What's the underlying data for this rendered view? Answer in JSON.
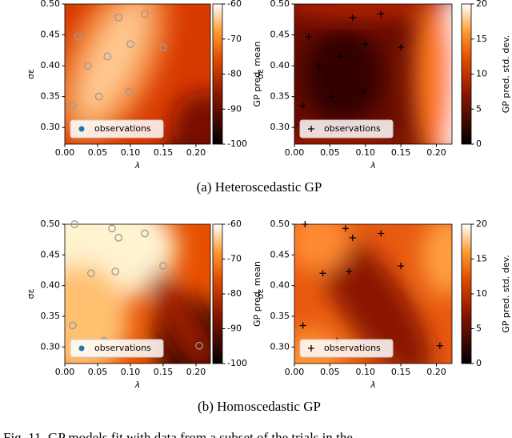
{
  "chart_data": [
    {
      "type": "scatter",
      "xlabel": "λ",
      "ylabel": "σε",
      "colorbar_label": "GP pred. mean",
      "clim": [
        -100,
        -60
      ],
      "cticks": [
        -100,
        -90,
        -80,
        -70,
        -60
      ],
      "marker": "circle",
      "legend": "lower left",
      "series": [
        {
          "name": "observations",
          "color": "#1f77b4",
          "x": [
            0.012,
            0.02,
            0.035,
            0.052,
            0.065,
            0.082,
            0.1,
            0.098,
            0.122,
            0.15
          ],
          "values": [
            0.335,
            0.447,
            0.4,
            0.35,
            0.415,
            0.478,
            0.435,
            0.358,
            0.484,
            0.43
          ]
        }
      ],
      "xlim": [
        0,
        0.222
      ],
      "ylim": [
        0.273,
        0.5
      ],
      "xticks": [
        {
          "value": 0,
          "label": "0.00"
        },
        {
          "value": 0.05,
          "label": "0.05"
        },
        {
          "value": 0.1,
          "label": "0.10"
        },
        {
          "value": 0.15,
          "label": "0.15"
        },
        {
          "value": 0.2,
          "label": "0.20"
        }
      ],
      "yticks": [
        {
          "value": 0.3,
          "label": "0.30"
        },
        {
          "value": 0.35,
          "label": "0.35"
        },
        {
          "value": 0.4,
          "label": "0.40"
        },
        {
          "value": 0.45,
          "label": "0.45"
        },
        {
          "value": 0.5,
          "label": "0.50"
        }
      ]
    },
    {
      "type": "scatter",
      "xlabel": "λ",
      "ylabel": "σε",
      "colorbar_label": "GP pred. std. dev.",
      "clim": [
        0,
        20
      ],
      "cticks": [
        0,
        5,
        10,
        15,
        20
      ],
      "marker": "plus",
      "legend": "lower left",
      "series": [
        {
          "name": "observations",
          "color": "#000000",
          "x": [
            0.012,
            0.02,
            0.035,
            0.052,
            0.065,
            0.082,
            0.1,
            0.098,
            0.122,
            0.15
          ],
          "values": [
            0.335,
            0.447,
            0.4,
            0.35,
            0.415,
            0.478,
            0.435,
            0.358,
            0.484,
            0.43
          ]
        }
      ],
      "xlim": [
        0,
        0.222
      ],
      "ylim": [
        0.273,
        0.5
      ],
      "xticks": [
        {
          "value": 0,
          "label": "0.00"
        },
        {
          "value": 0.05,
          "label": "0.05"
        },
        {
          "value": 0.1,
          "label": "0.10"
        },
        {
          "value": 0.15,
          "label": "0.15"
        },
        {
          "value": 0.2,
          "label": "0.20"
        }
      ],
      "yticks": [
        {
          "value": 0.3,
          "label": "0.30"
        },
        {
          "value": 0.35,
          "label": "0.35"
        },
        {
          "value": 0.4,
          "label": "0.40"
        },
        {
          "value": 0.45,
          "label": "0.45"
        },
        {
          "value": 0.5,
          "label": "0.50"
        }
      ]
    },
    {
      "type": "scatter",
      "xlabel": "λ",
      "ylabel": "σε",
      "colorbar_label": "GP pred. mean",
      "clim": [
        -100,
        -60
      ],
      "cticks": [
        -100,
        -90,
        -80,
        -70,
        -60
      ],
      "marker": "circle",
      "legend": "lower left",
      "series": [
        {
          "name": "observations",
          "color": "#1f77b4",
          "x": [
            0.012,
            0.015,
            0.04,
            0.06,
            0.072,
            0.077,
            0.082,
            0.122,
            0.15,
            0.205
          ],
          "values": [
            0.335,
            0.5,
            0.42,
            0.31,
            0.493,
            0.423,
            0.478,
            0.485,
            0.432,
            0.302
          ]
        }
      ],
      "xlim": [
        0,
        0.222
      ],
      "ylim": [
        0.273,
        0.5
      ],
      "xticks": [
        {
          "value": 0,
          "label": "0.00"
        },
        {
          "value": 0.05,
          "label": "0.05"
        },
        {
          "value": 0.1,
          "label": "0.10"
        },
        {
          "value": 0.15,
          "label": "0.15"
        },
        {
          "value": 0.2,
          "label": "0.20"
        }
      ],
      "yticks": [
        {
          "value": 0.3,
          "label": "0.30"
        },
        {
          "value": 0.35,
          "label": "0.35"
        },
        {
          "value": 0.4,
          "label": "0.40"
        },
        {
          "value": 0.45,
          "label": "0.45"
        },
        {
          "value": 0.5,
          "label": "0.50"
        }
      ]
    },
    {
      "type": "scatter",
      "xlabel": "λ",
      "ylabel": "σε",
      "colorbar_label": "GP pred. std. dev.",
      "clim": [
        0,
        20
      ],
      "cticks": [
        0,
        5,
        10,
        15,
        20
      ],
      "marker": "plus",
      "legend": "lower left",
      "series": [
        {
          "name": "observations",
          "color": "#000000",
          "x": [
            0.012,
            0.015,
            0.04,
            0.06,
            0.072,
            0.077,
            0.082,
            0.122,
            0.15,
            0.205
          ],
          "values": [
            0.335,
            0.5,
            0.42,
            0.31,
            0.493,
            0.423,
            0.478,
            0.485,
            0.432,
            0.302
          ]
        }
      ],
      "xlim": [
        0,
        0.222
      ],
      "ylim": [
        0.273,
        0.5
      ],
      "xticks": [
        {
          "value": 0,
          "label": "0.00"
        },
        {
          "value": 0.05,
          "label": "0.05"
        },
        {
          "value": 0.1,
          "label": "0.10"
        },
        {
          "value": 0.15,
          "label": "0.15"
        },
        {
          "value": 0.2,
          "label": "0.20"
        }
      ],
      "yticks": [
        {
          "value": 0.3,
          "label": "0.30"
        },
        {
          "value": 0.35,
          "label": "0.35"
        },
        {
          "value": 0.4,
          "label": "0.40"
        },
        {
          "value": 0.45,
          "label": "0.45"
        },
        {
          "value": 0.5,
          "label": "0.50"
        }
      ]
    }
  ],
  "captions": [
    "(a) Heteroscedastic GP",
    "(b) Homoscedastic GP"
  ],
  "figure_caption": "Fig. 11. GP models fit with data from a subset of the trials in the"
}
